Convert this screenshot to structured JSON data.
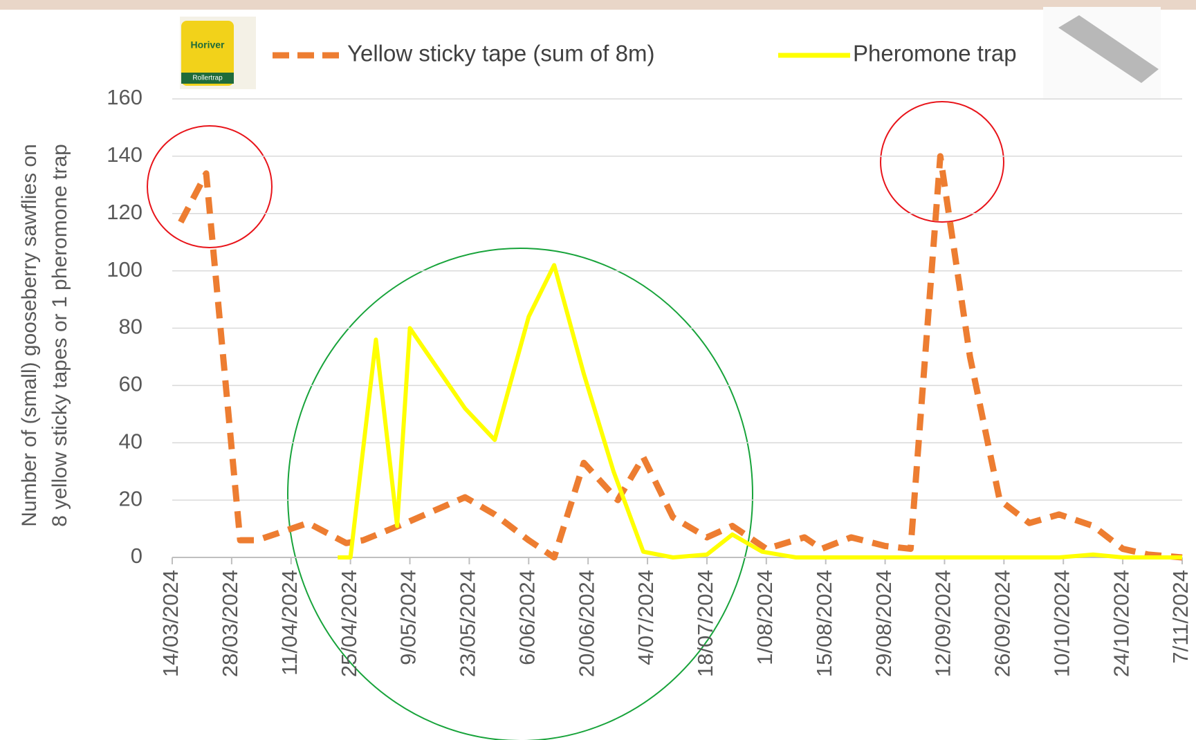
{
  "product_image": {
    "brand": "Horiver",
    "name": "Rollertrap"
  },
  "chart_data": {
    "type": "line",
    "y_label": [
      "Number of (small) gooseberry sawflies on",
      "8 yellow sticky tapes or 1 pheromone trap"
    ],
    "legend": "top",
    "grid": true,
    "xlim": [
      "14/03/2024",
      "7/11/2024"
    ],
    "xticks": [
      "14/03/2024",
      "28/03/2024",
      "11/04/2024",
      "25/04/2024",
      "9/05/2024",
      "23/05/2024",
      "6/06/2024",
      "20/06/2024",
      "4/07/2024",
      "18/07/2024",
      "1/08/2024",
      "15/08/2024",
      "29/08/2024",
      "12/09/2024",
      "26/09/2024",
      "10/10/2024",
      "24/10/2024",
      "7/11/2024"
    ],
    "ylim": [
      0,
      160
    ],
    "yticks": [
      0,
      20,
      40,
      60,
      80,
      100,
      120,
      140,
      160
    ],
    "series": [
      {
        "name": "Yellow sticky tape (sum of 8m)",
        "color": "#ed7d31",
        "dashed": true,
        "x": [
          "16/03/2024",
          "22/03/2024",
          "30/03/2024",
          "3/04/2024",
          "15/04/2024",
          "24/04/2024",
          "28/04/2024",
          "8/05/2024",
          "22/05/2024",
          "29/05/2024",
          "6/06/2024",
          "12/06/2024",
          "19/06/2024",
          "27/06/2024",
          "3/07/2024",
          "10/07/2024",
          "18/07/2024",
          "24/07/2024",
          "1/08/2024",
          "10/08/2024",
          "14/08/2024",
          "21/08/2024",
          "29/08/2024",
          "4/09/2024",
          "11/09/2024",
          "18/09/2024",
          "25/09/2024",
          "2/10/2024",
          "9/10/2024",
          "17/10/2024",
          "24/10/2024",
          "30/10/2024",
          "7/11/2024"
        ],
        "values": [
          117,
          134,
          6,
          6,
          12,
          5,
          6,
          12,
          21,
          15,
          6,
          0,
          33,
          20,
          35,
          14,
          7,
          11,
          3,
          7,
          3,
          7,
          4,
          3,
          140,
          70,
          20,
          12,
          15,
          11,
          3,
          1,
          0
        ]
      },
      {
        "name": "Pheromone trap",
        "color": "#ffff00",
        "dashed": false,
        "x": [
          "22/04/2024",
          "25/04/2024",
          "1/05/2024",
          "6/05/2024",
          "9/05/2024",
          "22/05/2024",
          "29/05/2024",
          "6/06/2024",
          "12/06/2024",
          "19/06/2024",
          "26/06/2024",
          "3/07/2024",
          "10/07/2024",
          "18/07/2024",
          "24/07/2024",
          "31/07/2024",
          "8/08/2024",
          "21/08/2024",
          "4/09/2024",
          "11/09/2024",
          "25/09/2024",
          "9/10/2024",
          "17/10/2024",
          "24/10/2024",
          "7/11/2024"
        ],
        "values": [
          0,
          0,
          76,
          11,
          80,
          52,
          41,
          84,
          102,
          64,
          30,
          2,
          0,
          1,
          8,
          2,
          0,
          0,
          0,
          0,
          0,
          0,
          1,
          0,
          0
        ]
      }
    ]
  }
}
